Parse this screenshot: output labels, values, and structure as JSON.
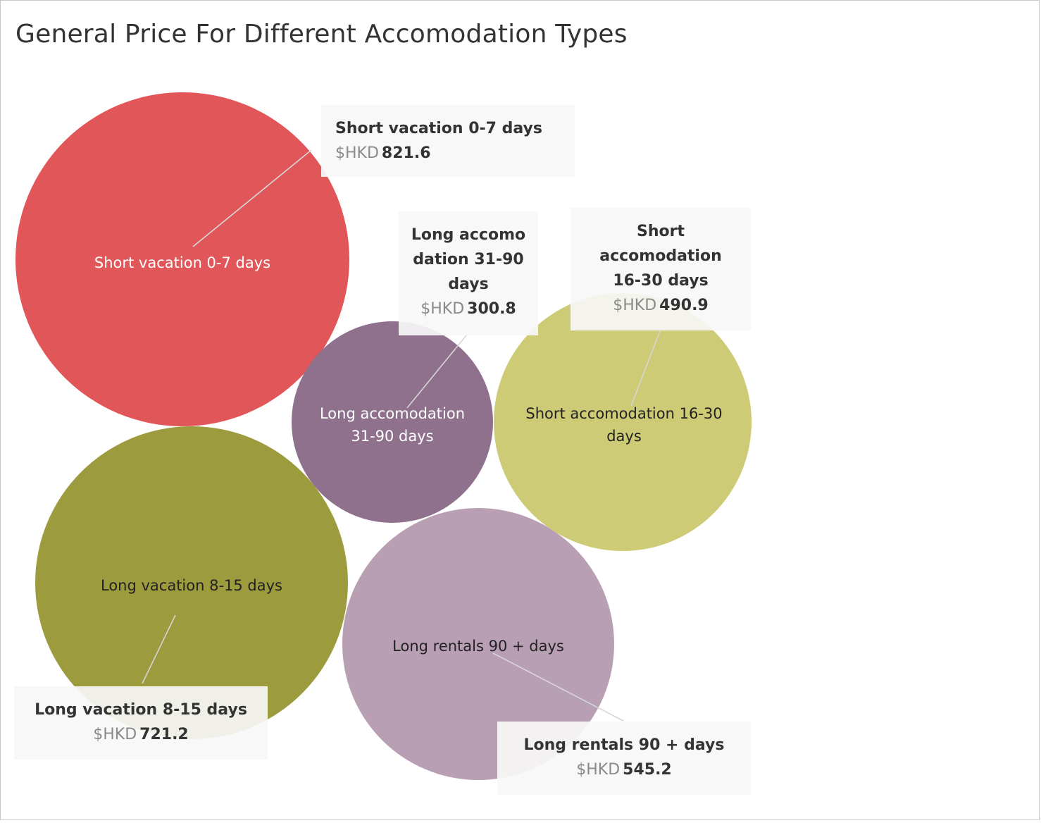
{
  "title": "General Price For Different Accomodation Types",
  "chart_data": {
    "type": "bubble",
    "unit_label": "$HKD",
    "items": [
      {
        "category": "Short vacation 0-7 days",
        "value": 821.6,
        "color": "#e15759",
        "label_color": "#ffffff",
        "callout_lines": [
          "Short vacation 0-7 days"
        ]
      },
      {
        "category": "Long vacation 8-15 days",
        "value": 721.2,
        "color": "#9c9b3d",
        "label_color": "#222222",
        "callout_lines": [
          "Long vacation 8-15 days"
        ]
      },
      {
        "category": "Long rentals 90 + days",
        "value": 545.2,
        "color": "#b89fb4",
        "label_color": "#222222",
        "callout_lines": [
          "Long rentals 90 + days"
        ]
      },
      {
        "category": "Short accomodation 16-30 days",
        "value": 490.9,
        "color": "#cdcb76",
        "label_color": "#222222",
        "callout_lines": [
          "Short",
          "accomodation",
          "16-30 days"
        ]
      },
      {
        "category": "Long accomodation 31-90 days",
        "value": 300.8,
        "color": "#8f718d",
        "label_color": "#ffffff",
        "callout_lines": [
          "Long accomo",
          "dation 31-90",
          "days"
        ]
      }
    ]
  }
}
